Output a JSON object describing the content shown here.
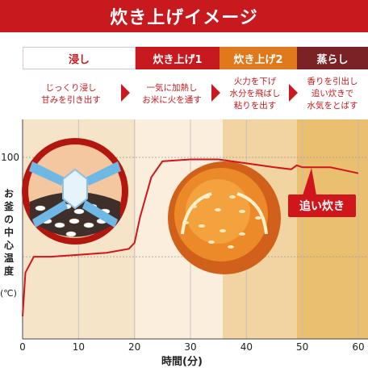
{
  "title": "炊き上げイメージ",
  "phases": [
    {
      "label": "浸し",
      "desc": [
        "じっくり浸し",
        "甘みを引き出す"
      ]
    },
    {
      "label": "炊き上げ1",
      "desc": [
        "一気に加熱し",
        "お米に火を通す"
      ]
    },
    {
      "label": "炊き上げ2",
      "desc": [
        "火力を下げ",
        "水分を飛ばし",
        "粘りを出す"
      ]
    },
    {
      "label": "蒸らし",
      "desc": [
        "香りを引出し",
        "追い炊きで",
        "水気をとばす"
      ]
    }
  ],
  "badge": "追い炊き",
  "colors": {
    "accent": "#c8191e",
    "phase2": "#c8191e",
    "phase3": "#e0791c",
    "phase4": "#7b2226"
  },
  "chart_data": {
    "type": "line",
    "xlabel": "時間(分)",
    "ylabel": "お釜の中心温度",
    "yunit": "(℃)",
    "xlim": [
      0,
      60
    ],
    "xticks": [
      0,
      10,
      20,
      30,
      40,
      50,
      60
    ],
    "yticks": [
      100
    ],
    "grid": true,
    "series": [
      {
        "x": [
          0,
          0.5,
          2,
          5,
          10,
          15,
          19,
          20,
          21,
          23,
          25,
          30,
          35,
          40,
          45,
          48,
          49,
          50,
          55,
          60
        ],
        "y": [
          20,
          42,
          50,
          50,
          51,
          52,
          54,
          57,
          70,
          90,
          98,
          99,
          99,
          97,
          95,
          94,
          96,
          95,
          95,
          92
        ]
      }
    ]
  }
}
